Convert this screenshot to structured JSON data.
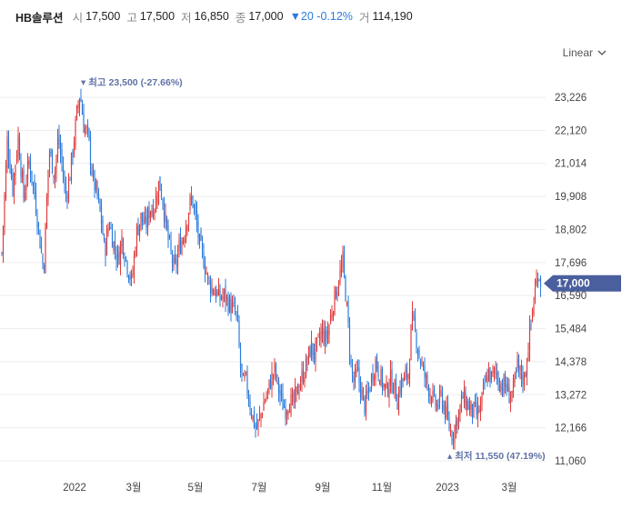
{
  "header": {
    "name": "HB솔루션",
    "open_label": "시",
    "open": "17,500",
    "high_label": "고",
    "high": "17,500",
    "low_label": "저",
    "low": "16,850",
    "close_label": "종",
    "close": "17,000",
    "change": "▼20 -0.12%",
    "volume_label": "거",
    "volume": "114,190"
  },
  "scale": {
    "label": "Linear",
    "icon": "chevron-down-icon"
  },
  "colors": {
    "up": "#e03b3b",
    "down": "#2a7bdc",
    "badge": "#4a5f9e",
    "annotation": "#6072a6"
  },
  "chart_data": {
    "type": "candlestick",
    "y_scale": "linear",
    "ylim": [
      11060,
      23800
    ],
    "y_ticks": [
      11060,
      12166,
      13272,
      14378,
      15484,
      16590,
      17696,
      18802,
      19908,
      21014,
      22120,
      23226
    ],
    "y_tick_labels": [
      "11,060",
      "12,166",
      "13,272",
      "14,378",
      "15,484",
      "16,590",
      "17,696",
      "18,802",
      "19,908",
      "21,014",
      "22,120",
      "23,226"
    ],
    "x_tick_labels": [
      "2022",
      "3월",
      "5월",
      "7월",
      "9월",
      "11월",
      "2023",
      "3월"
    ],
    "high_annotation": {
      "label": "최고",
      "value": "23,500 (-27.66%)"
    },
    "low_annotation": {
      "label": "최저",
      "value": "11,550 (47.19%)"
    },
    "last_price": "17,000",
    "close_path": [
      [
        0,
        18000
      ],
      [
        6,
        21800
      ],
      [
        12,
        20200
      ],
      [
        18,
        21900
      ],
      [
        24,
        19900
      ],
      [
        30,
        21100
      ],
      [
        36,
        20000
      ],
      [
        42,
        18400
      ],
      [
        46,
        17400
      ],
      [
        52,
        21500
      ],
      [
        58,
        20600
      ],
      [
        62,
        21900
      ],
      [
        66,
        21000
      ],
      [
        70,
        19900
      ],
      [
        74,
        20400
      ],
      [
        79,
        21700
      ],
      [
        83,
        22800
      ],
      [
        86,
        23400
      ],
      [
        90,
        22300
      ],
      [
        95,
        21900
      ],
      [
        100,
        20500
      ],
      [
        105,
        19900
      ],
      [
        110,
        19000
      ],
      [
        113,
        18000
      ],
      [
        118,
        19100
      ],
      [
        123,
        18300
      ],
      [
        128,
        17800
      ],
      [
        132,
        18500
      ],
      [
        138,
        17600
      ],
      [
        143,
        17000
      ],
      [
        148,
        18700
      ],
      [
        153,
        19200
      ],
      [
        158,
        18900
      ],
      [
        163,
        19500
      ],
      [
        168,
        19600
      ],
      [
        173,
        20400
      ],
      [
        177,
        19800
      ],
      [
        181,
        18800
      ],
      [
        185,
        18100
      ],
      [
        190,
        17400
      ],
      [
        195,
        18200
      ],
      [
        200,
        18600
      ],
      [
        205,
        19400
      ],
      [
        209,
        19900
      ],
      [
        213,
        19200
      ],
      [
        218,
        18200
      ],
      [
        222,
        17800
      ],
      [
        226,
        17200
      ],
      [
        230,
        16900
      ],
      [
        235,
        16700
      ],
      [
        240,
        16500
      ],
      [
        245,
        16600
      ],
      [
        250,
        16300
      ],
      [
        255,
        16100
      ],
      [
        259,
        15800
      ],
      [
        262,
        14300
      ],
      [
        265,
        13600
      ],
      [
        268,
        13800
      ],
      [
        272,
        13100
      ],
      [
        276,
        12500
      ],
      [
        280,
        12100
      ],
      [
        284,
        12500
      ],
      [
        288,
        13000
      ],
      [
        292,
        13300
      ],
      [
        296,
        13800
      ],
      [
        300,
        14100
      ],
      [
        304,
        13500
      ],
      [
        308,
        13000
      ],
      [
        312,
        12800
      ],
      [
        316,
        13100
      ],
      [
        320,
        12900
      ],
      [
        324,
        13300
      ],
      [
        328,
        13700
      ],
      [
        332,
        14000
      ],
      [
        336,
        14400
      ],
      [
        340,
        14900
      ],
      [
        344,
        14600
      ],
      [
        348,
        15000
      ],
      [
        352,
        15400
      ],
      [
        356,
        15100
      ],
      [
        360,
        15600
      ],
      [
        364,
        16300
      ],
      [
        368,
        16800
      ],
      [
        372,
        17300
      ],
      [
        375,
        17700
      ],
      [
        378,
        16700
      ],
      [
        381,
        15500
      ],
      [
        384,
        14200
      ],
      [
        387,
        13700
      ],
      [
        391,
        14000
      ],
      [
        395,
        13400
      ],
      [
        399,
        12900
      ],
      [
        403,
        13300
      ],
      [
        407,
        13900
      ],
      [
        411,
        14400
      ],
      [
        415,
        14000
      ],
      [
        419,
        13600
      ],
      [
        423,
        13400
      ],
      [
        427,
        13800
      ],
      [
        431,
        13600
      ],
      [
        435,
        13100
      ],
      [
        439,
        13700
      ],
      [
        443,
        13800
      ],
      [
        447,
        14000
      ],
      [
        451,
        15800
      ],
      [
        455,
        15300
      ],
      [
        459,
        14600
      ],
      [
        463,
        14100
      ],
      [
        467,
        13700
      ],
      [
        471,
        13400
      ],
      [
        475,
        13000
      ],
      [
        479,
        12900
      ],
      [
        483,
        13200
      ],
      [
        487,
        12800
      ],
      [
        491,
        12300
      ],
      [
        495,
        11900
      ],
      [
        499,
        12300
      ],
      [
        503,
        12700
      ],
      [
        507,
        13200
      ],
      [
        511,
        13000
      ],
      [
        515,
        12800
      ],
      [
        519,
        12700
      ],
      [
        523,
        12600
      ],
      [
        527,
        12900
      ],
      [
        531,
        13600
      ],
      [
        535,
        14000
      ],
      [
        539,
        13800
      ],
      [
        543,
        14100
      ],
      [
        547,
        13700
      ],
      [
        551,
        13600
      ],
      [
        555,
        13500
      ],
      [
        559,
        13200
      ],
      [
        563,
        13500
      ],
      [
        567,
        14200
      ],
      [
        571,
        13900
      ],
      [
        575,
        13800
      ],
      [
        578,
        14700
      ],
      [
        581,
        15500
      ],
      [
        584,
        16200
      ],
      [
        587,
        16900
      ],
      [
        590,
        17400
      ],
      [
        593,
        17000
      ]
    ]
  }
}
